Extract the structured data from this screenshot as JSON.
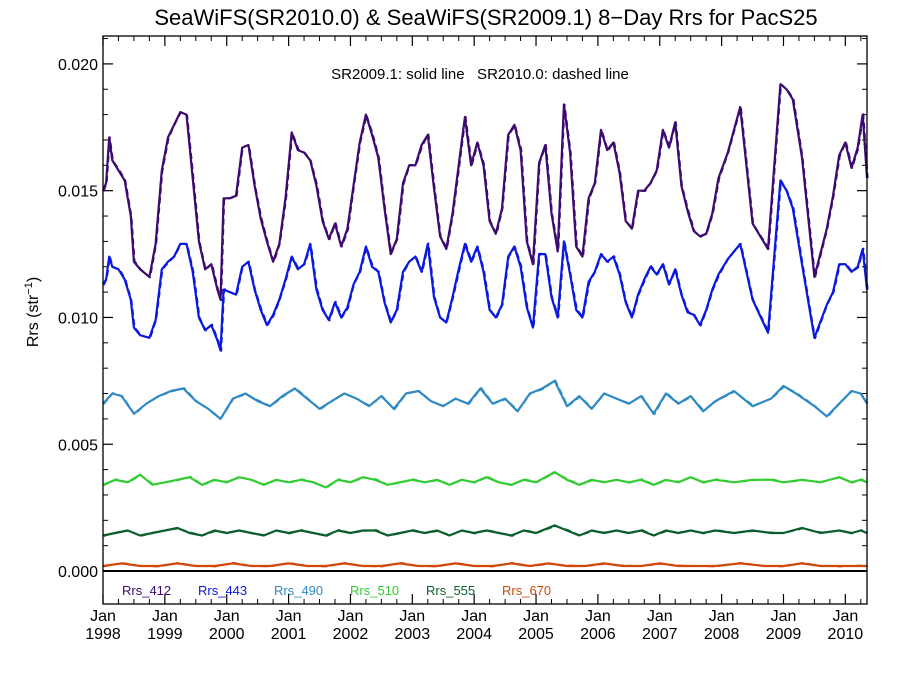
{
  "chart_data": {
    "type": "line",
    "title": "SeaWiFS(SR2010.0) & SeaWiFS(SR2009.1) 8−Day Rrs for PacS25",
    "annotation": "SR2009.1: solid line   SR2010.0: dashed line",
    "ylabel": "Rrs (str",
    "ylabel_sup": "−1",
    "ylabel_close": ")",
    "ylim": [
      -0.0013,
      0.0211
    ],
    "xlim": [
      1998.0,
      2010.35
    ],
    "grid": false,
    "legend_placement": "bottom-left",
    "y_ticks": [
      {
        "value": 0.0,
        "label": "0.000"
      },
      {
        "value": 0.005,
        "label": "0.005"
      },
      {
        "value": 0.01,
        "label": "0.010"
      },
      {
        "value": 0.015,
        "label": "0.015"
      },
      {
        "value": 0.02,
        "label": "0.020"
      }
    ],
    "x_ticks": [
      {
        "value": 1998,
        "month": "Jan",
        "year": "1998"
      },
      {
        "value": 1999,
        "month": "Jan",
        "year": "1999"
      },
      {
        "value": 2000,
        "month": "Jan",
        "year": "2000"
      },
      {
        "value": 2001,
        "month": "Jan",
        "year": "2001"
      },
      {
        "value": 2002,
        "month": "Jan",
        "year": "2002"
      },
      {
        "value": 2003,
        "month": "Jan",
        "year": "2003"
      },
      {
        "value": 2004,
        "month": "Jan",
        "year": "2004"
      },
      {
        "value": 2005,
        "month": "Jan",
        "year": "2005"
      },
      {
        "value": 2006,
        "month": "Jan",
        "year": "2006"
      },
      {
        "value": 2007,
        "month": "Jan",
        "year": "2007"
      },
      {
        "value": 2008,
        "month": "Jan",
        "year": "2008"
      },
      {
        "value": 2009,
        "month": "Jan",
        "year": "2009"
      },
      {
        "value": 2010,
        "month": "Jan",
        "year": "2010"
      }
    ],
    "series": [
      {
        "name": "Rrs_412",
        "color": "#3d0a70",
        "x": [
          1998.0,
          1998.05,
          1998.1,
          1998.15,
          1998.25,
          1998.35,
          1998.45,
          1998.5,
          1998.6,
          1998.75,
          1998.85,
          1998.95,
          1999.05,
          1999.15,
          1999.25,
          1999.35,
          1999.45,
          1999.55,
          1999.65,
          1999.75,
          1999.85,
          1999.9,
          1999.95,
          2000.05,
          2000.15,
          2000.25,
          2000.35,
          2000.45,
          2000.55,
          2000.65,
          2000.75,
          2000.85,
          2000.95,
          2001.05,
          2001.15,
          2001.25,
          2001.35,
          2001.45,
          2001.55,
          2001.65,
          2001.75,
          2001.85,
          2001.95,
          2002.05,
          2002.15,
          2002.25,
          2002.35,
          2002.45,
          2002.55,
          2002.65,
          2002.75,
          2002.85,
          2002.95,
          2003.05,
          2003.15,
          2003.25,
          2003.35,
          2003.45,
          2003.55,
          2003.65,
          2003.75,
          2003.85,
          2003.95,
          2004.05,
          2004.15,
          2004.25,
          2004.35,
          2004.45,
          2004.55,
          2004.65,
          2004.75,
          2004.85,
          2004.95,
          2005.05,
          2005.15,
          2005.25,
          2005.35,
          2005.45,
          2005.55,
          2005.65,
          2005.75,
          2005.85,
          2005.95,
          2006.05,
          2006.15,
          2006.25,
          2006.35,
          2006.45,
          2006.55,
          2006.65,
          2006.75,
          2006.85,
          2006.95,
          2007.05,
          2007.15,
          2007.25,
          2007.35,
          2007.45,
          2007.55,
          2007.65,
          2007.75,
          2007.85,
          2007.95,
          2008.1,
          2008.3,
          2008.5,
          2008.75,
          2008.95,
          2009.05,
          2009.15,
          2009.3,
          2009.5,
          2009.7,
          2009.8,
          2009.9,
          2010.0,
          2010.1,
          2010.2,
          2010.28,
          2010.35
        ],
        "values": [
          0.015,
          0.0153,
          0.0171,
          0.0162,
          0.0158,
          0.0154,
          0.014,
          0.0122,
          0.0119,
          0.0116,
          0.0129,
          0.0158,
          0.0171,
          0.0176,
          0.0181,
          0.018,
          0.0155,
          0.013,
          0.0119,
          0.0121,
          0.0111,
          0.0107,
          0.0147,
          0.0147,
          0.0148,
          0.0167,
          0.0168,
          0.0152,
          0.0139,
          0.013,
          0.0122,
          0.0129,
          0.0147,
          0.0173,
          0.0166,
          0.0165,
          0.0162,
          0.0152,
          0.0138,
          0.0131,
          0.0137,
          0.0128,
          0.0135,
          0.0152,
          0.0169,
          0.018,
          0.0172,
          0.0163,
          0.0143,
          0.0125,
          0.0131,
          0.0153,
          0.016,
          0.016,
          0.0168,
          0.0172,
          0.0151,
          0.0132,
          0.0127,
          0.0141,
          0.016,
          0.0179,
          0.016,
          0.0169,
          0.016,
          0.0138,
          0.0133,
          0.0143,
          0.0172,
          0.0176,
          0.0166,
          0.013,
          0.0121,
          0.0161,
          0.0168,
          0.0141,
          0.0126,
          0.0184,
          0.0165,
          0.0128,
          0.0124,
          0.0147,
          0.0153,
          0.0174,
          0.0166,
          0.0169,
          0.0157,
          0.0138,
          0.0135,
          0.015,
          0.015,
          0.0153,
          0.0158,
          0.0174,
          0.0167,
          0.0177,
          0.0152,
          0.0142,
          0.0134,
          0.0132,
          0.0133,
          0.0141,
          0.0155,
          0.0165,
          0.0183,
          0.0137,
          0.0127,
          0.0192,
          0.019,
          0.0186,
          0.0163,
          0.0116,
          0.0135,
          0.0148,
          0.0164,
          0.0169,
          0.0159,
          0.0167,
          0.018,
          0.0155
        ]
      },
      {
        "name": "Rrs_443",
        "color": "#0a18e0",
        "x": [
          1998.0,
          1998.05,
          1998.1,
          1998.15,
          1998.25,
          1998.35,
          1998.45,
          1998.5,
          1998.6,
          1998.75,
          1998.85,
          1998.95,
          1999.05,
          1999.15,
          1999.25,
          1999.35,
          1999.45,
          1999.55,
          1999.65,
          1999.75,
          1999.85,
          1999.9,
          1999.95,
          2000.05,
          2000.15,
          2000.25,
          2000.35,
          2000.45,
          2000.55,
          2000.65,
          2000.75,
          2000.85,
          2000.95,
          2001.05,
          2001.15,
          2001.25,
          2001.35,
          2001.45,
          2001.55,
          2001.65,
          2001.75,
          2001.85,
          2001.95,
          2002.05,
          2002.15,
          2002.25,
          2002.35,
          2002.45,
          2002.55,
          2002.65,
          2002.75,
          2002.85,
          2002.95,
          2003.05,
          2003.15,
          2003.25,
          2003.35,
          2003.45,
          2003.55,
          2003.65,
          2003.75,
          2003.85,
          2003.95,
          2004.05,
          2004.15,
          2004.25,
          2004.35,
          2004.45,
          2004.55,
          2004.65,
          2004.75,
          2004.85,
          2004.95,
          2005.05,
          2005.15,
          2005.25,
          2005.35,
          2005.45,
          2005.55,
          2005.65,
          2005.75,
          2005.85,
          2005.95,
          2006.05,
          2006.15,
          2006.25,
          2006.35,
          2006.45,
          2006.55,
          2006.65,
          2006.75,
          2006.85,
          2006.95,
          2007.05,
          2007.15,
          2007.25,
          2007.35,
          2007.45,
          2007.55,
          2007.65,
          2007.75,
          2007.85,
          2007.95,
          2008.1,
          2008.3,
          2008.5,
          2008.75,
          2008.95,
          2009.05,
          2009.15,
          2009.3,
          2009.5,
          2009.7,
          2009.8,
          2009.9,
          2010.0,
          2010.1,
          2010.2,
          2010.28,
          2010.35
        ],
        "values": [
          0.0113,
          0.0115,
          0.0124,
          0.012,
          0.0119,
          0.0115,
          0.0107,
          0.0096,
          0.0093,
          0.0092,
          0.0099,
          0.0119,
          0.0122,
          0.0124,
          0.0129,
          0.0129,
          0.0118,
          0.01,
          0.0095,
          0.0097,
          0.0091,
          0.0087,
          0.0111,
          0.011,
          0.0109,
          0.012,
          0.0122,
          0.0111,
          0.0103,
          0.0097,
          0.0101,
          0.0107,
          0.0115,
          0.0124,
          0.0119,
          0.0121,
          0.0129,
          0.0111,
          0.0103,
          0.0099,
          0.0106,
          0.01,
          0.0104,
          0.0113,
          0.0118,
          0.0128,
          0.012,
          0.0118,
          0.0106,
          0.0098,
          0.0103,
          0.0118,
          0.0122,
          0.0124,
          0.0118,
          0.0129,
          0.0108,
          0.01,
          0.0098,
          0.0108,
          0.0119,
          0.0129,
          0.0122,
          0.0128,
          0.0118,
          0.0103,
          0.01,
          0.0105,
          0.0124,
          0.0128,
          0.012,
          0.0104,
          0.0096,
          0.0125,
          0.0125,
          0.0108,
          0.01,
          0.013,
          0.0117,
          0.0103,
          0.01,
          0.0114,
          0.0118,
          0.0125,
          0.0122,
          0.0124,
          0.0117,
          0.0106,
          0.01,
          0.0109,
          0.0115,
          0.012,
          0.0117,
          0.0121,
          0.0113,
          0.0119,
          0.0109,
          0.0102,
          0.0101,
          0.0097,
          0.0103,
          0.0111,
          0.0117,
          0.0123,
          0.0129,
          0.0107,
          0.0094,
          0.0154,
          0.015,
          0.0143,
          0.0121,
          0.0092,
          0.0105,
          0.011,
          0.0121,
          0.0121,
          0.0118,
          0.012,
          0.0127,
          0.0111
        ]
      },
      {
        "name": "Rrs_490",
        "color": "#2f8ac4",
        "x": [
          1998.0,
          1998.15,
          1998.3,
          1998.5,
          1998.7,
          1998.9,
          1999.1,
          1999.3,
          1999.5,
          1999.7,
          1999.9,
          2000.1,
          2000.3,
          2000.5,
          2000.7,
          2000.9,
          2001.1,
          2001.3,
          2001.5,
          2001.7,
          2001.9,
          2002.1,
          2002.3,
          2002.5,
          2002.7,
          2002.9,
          2003.1,
          2003.3,
          2003.5,
          2003.7,
          2003.9,
          2004.1,
          2004.3,
          2004.5,
          2004.7,
          2004.9,
          2005.1,
          2005.3,
          2005.5,
          2005.7,
          2005.9,
          2006.1,
          2006.3,
          2006.5,
          2006.7,
          2006.9,
          2007.1,
          2007.3,
          2007.5,
          2007.7,
          2007.9,
          2008.2,
          2008.5,
          2008.8,
          2009.0,
          2009.2,
          2009.5,
          2009.7,
          2009.9,
          2010.1,
          2010.25,
          2010.35
        ],
        "values": [
          0.0066,
          0.007,
          0.0069,
          0.0062,
          0.0066,
          0.0069,
          0.0071,
          0.0072,
          0.0067,
          0.0064,
          0.006,
          0.0068,
          0.007,
          0.0067,
          0.0065,
          0.0069,
          0.0072,
          0.0068,
          0.0064,
          0.0067,
          0.007,
          0.0068,
          0.0065,
          0.0069,
          0.0064,
          0.007,
          0.0071,
          0.0067,
          0.0065,
          0.0068,
          0.0066,
          0.0072,
          0.0066,
          0.0068,
          0.0063,
          0.007,
          0.0072,
          0.0075,
          0.0065,
          0.0069,
          0.0064,
          0.007,
          0.0068,
          0.0066,
          0.0069,
          0.0062,
          0.007,
          0.0066,
          0.0069,
          0.0063,
          0.0067,
          0.0071,
          0.0065,
          0.0068,
          0.0073,
          0.007,
          0.0065,
          0.0061,
          0.0066,
          0.0071,
          0.007,
          0.0066
        ]
      },
      {
        "name": "Rrs_510",
        "color": "#33cc33",
        "x": [
          1998.0,
          1998.2,
          1998.4,
          1998.6,
          1998.8,
          1999.0,
          1999.2,
          1999.4,
          1999.6,
          1999.8,
          2000.0,
          2000.2,
          2000.4,
          2000.6,
          2000.8,
          2001.0,
          2001.2,
          2001.4,
          2001.6,
          2001.8,
          2002.0,
          2002.2,
          2002.4,
          2002.6,
          2002.8,
          2003.0,
          2003.2,
          2003.4,
          2003.6,
          2003.8,
          2004.0,
          2004.2,
          2004.4,
          2004.6,
          2004.8,
          2005.0,
          2005.3,
          2005.5,
          2005.7,
          2005.9,
          2006.1,
          2006.3,
          2006.5,
          2006.7,
          2006.9,
          2007.1,
          2007.3,
          2007.5,
          2007.7,
          2007.9,
          2008.2,
          2008.5,
          2008.8,
          2009.0,
          2009.3,
          2009.6,
          2009.9,
          2010.1,
          2010.25,
          2010.35
        ],
        "values": [
          0.0034,
          0.0036,
          0.0035,
          0.0038,
          0.0034,
          0.0035,
          0.0036,
          0.0037,
          0.0034,
          0.0036,
          0.0035,
          0.0037,
          0.0036,
          0.0034,
          0.0036,
          0.0035,
          0.0036,
          0.0035,
          0.0033,
          0.0036,
          0.0035,
          0.0037,
          0.0036,
          0.0034,
          0.0035,
          0.0036,
          0.0035,
          0.0036,
          0.0034,
          0.0036,
          0.0035,
          0.0037,
          0.0035,
          0.0034,
          0.0036,
          0.0035,
          0.0039,
          0.0036,
          0.0034,
          0.0036,
          0.0035,
          0.0036,
          0.0035,
          0.0036,
          0.0034,
          0.0036,
          0.0035,
          0.0037,
          0.0035,
          0.0036,
          0.0035,
          0.0036,
          0.0036,
          0.0035,
          0.0036,
          0.0035,
          0.0037,
          0.0035,
          0.0036,
          0.0035
        ]
      },
      {
        "name": "Rrs_555",
        "color": "#0b5e2c",
        "x": [
          1998.0,
          1998.2,
          1998.4,
          1998.6,
          1998.8,
          1999.0,
          1999.2,
          1999.4,
          1999.6,
          1999.8,
          2000.0,
          2000.2,
          2000.4,
          2000.6,
          2000.8,
          2001.0,
          2001.2,
          2001.4,
          2001.6,
          2001.8,
          2002.0,
          2002.2,
          2002.4,
          2002.6,
          2002.8,
          2003.0,
          2003.2,
          2003.4,
          2003.6,
          2003.8,
          2004.0,
          2004.2,
          2004.4,
          2004.6,
          2004.8,
          2005.0,
          2005.3,
          2005.5,
          2005.7,
          2005.9,
          2006.1,
          2006.3,
          2006.5,
          2006.7,
          2006.9,
          2007.1,
          2007.3,
          2007.5,
          2007.7,
          2007.9,
          2008.2,
          2008.5,
          2008.8,
          2009.0,
          2009.3,
          2009.6,
          2009.9,
          2010.1,
          2010.25,
          2010.35
        ],
        "values": [
          0.0014,
          0.0015,
          0.0016,
          0.0014,
          0.0015,
          0.0016,
          0.0017,
          0.0015,
          0.0014,
          0.0016,
          0.0015,
          0.0016,
          0.0015,
          0.0014,
          0.0016,
          0.0015,
          0.0016,
          0.0015,
          0.0014,
          0.0016,
          0.0015,
          0.0016,
          0.0016,
          0.0014,
          0.0015,
          0.0016,
          0.0015,
          0.0016,
          0.0014,
          0.0016,
          0.0015,
          0.0016,
          0.0015,
          0.0014,
          0.0016,
          0.0015,
          0.0018,
          0.0016,
          0.0014,
          0.0016,
          0.0015,
          0.0016,
          0.0015,
          0.0016,
          0.0014,
          0.0016,
          0.0015,
          0.0016,
          0.0015,
          0.0016,
          0.0015,
          0.0016,
          0.0015,
          0.0015,
          0.0017,
          0.0015,
          0.0016,
          0.0015,
          0.0016,
          0.0015
        ]
      },
      {
        "name": "Rrs_670",
        "color": "#d0480a",
        "x": [
          1998.0,
          1998.3,
          1998.6,
          1998.9,
          1999.2,
          1999.5,
          1999.8,
          2000.1,
          2000.4,
          2000.7,
          2001.0,
          2001.3,
          2001.6,
          2001.9,
          2002.2,
          2002.5,
          2002.8,
          2003.1,
          2003.4,
          2003.7,
          2004.0,
          2004.3,
          2004.6,
          2004.9,
          2005.2,
          2005.5,
          2005.8,
          2006.1,
          2006.4,
          2006.7,
          2007.0,
          2007.3,
          2007.6,
          2007.9,
          2008.3,
          2008.7,
          2009.0,
          2009.3,
          2009.6,
          2009.9,
          2010.2,
          2010.35
        ],
        "values": [
          0.0002,
          0.0003,
          0.0002,
          0.0002,
          0.0003,
          0.0002,
          0.0002,
          0.0003,
          0.0002,
          0.0002,
          0.0003,
          0.0002,
          0.0002,
          0.0003,
          0.0002,
          0.0002,
          0.0003,
          0.0002,
          0.0002,
          0.0003,
          0.0002,
          0.0002,
          0.0003,
          0.0002,
          0.0003,
          0.0002,
          0.0002,
          0.0003,
          0.0002,
          0.0002,
          0.0003,
          0.0002,
          0.0002,
          0.0002,
          0.0003,
          0.0002,
          0.0002,
          0.0003,
          0.0002,
          0.0002,
          0.0002,
          0.0002
        ]
      }
    ]
  }
}
